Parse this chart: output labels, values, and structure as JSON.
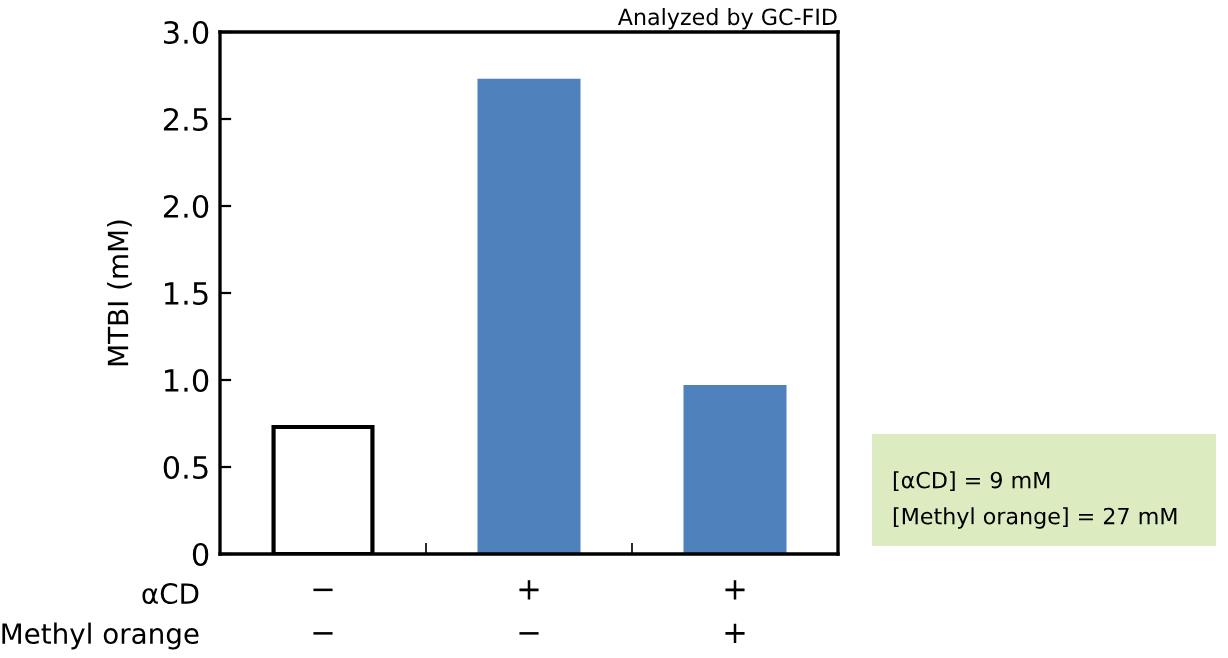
{
  "chart_data": {
    "type": "bar",
    "ylabel": "MTBI (mM)",
    "categories": [
      "−\n−",
      "+\n−",
      "+\n+"
    ],
    "values": [
      0.73,
      2.72,
      0.96
    ],
    "colors": [
      "#ffffff",
      "#4f81bd",
      "#4f81bd"
    ],
    "ylim": [
      0,
      3.0
    ],
    "yticks": [
      0,
      0.5,
      {
        "value": 1,
        "label": "1.0"
      },
      1.5,
      {
        "value": 2,
        "label": "2.0"
      },
      2.5,
      {
        "value": 3,
        "label": "3.0"
      }
    ],
    "annotations": [
      "Analyzed by GC-FID",
      "αCD",
      "Methyl orange",
      "[αCD] = 9 mM",
      "[Methyl orange] = 27 mM"
    ]
  }
}
